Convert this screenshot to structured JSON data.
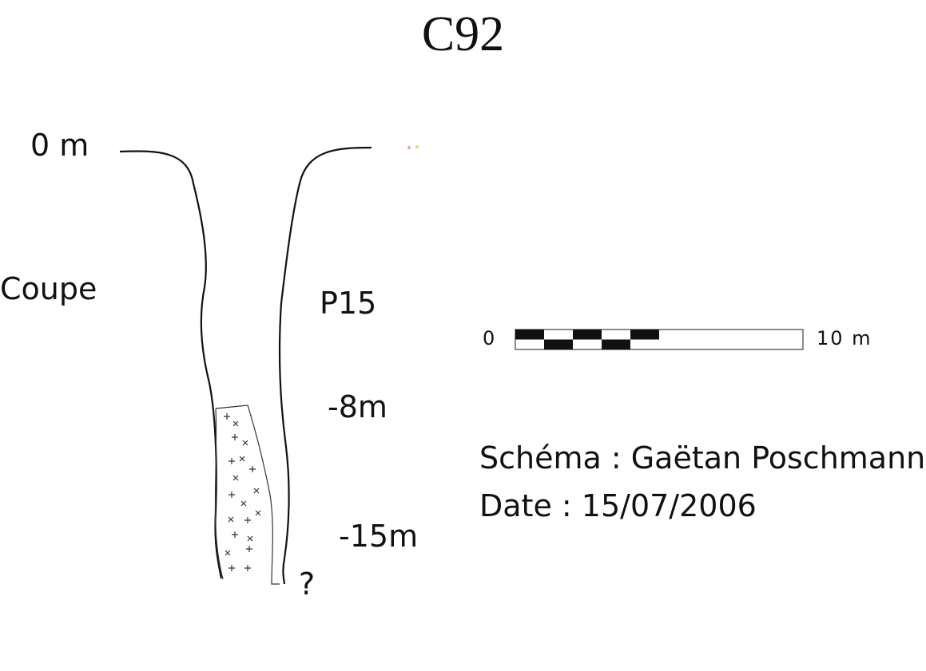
{
  "title": "C92",
  "labels": {
    "surface_depth": "0 m",
    "view_type": "Coupe",
    "shaft": "P15",
    "depth_8": "-8m",
    "depth_15": "-15m",
    "unknown": "?"
  },
  "scale_bar": {
    "start": "0",
    "end": "10 m",
    "segments": 5
  },
  "credits": {
    "schema": "Schéma : Gaëtan Poschmann",
    "date": "Date : 15/07/2006"
  },
  "colors": {
    "ink": "#111111",
    "fill_texture": "#333333"
  }
}
